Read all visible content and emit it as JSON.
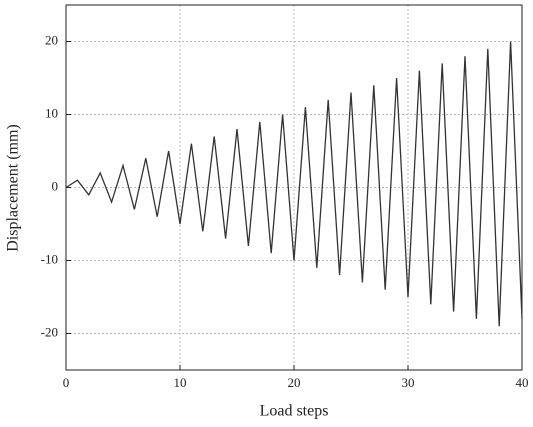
{
  "chart_data": {
    "type": "line",
    "xlabel": "Load steps",
    "ylabel": "Displacement (mm)",
    "x": [
      0,
      1,
      2,
      3,
      4,
      5,
      6,
      7,
      8,
      9,
      10,
      11,
      12,
      13,
      14,
      15,
      16,
      17,
      18,
      19,
      20,
      21,
      22,
      23,
      24,
      25,
      26,
      27,
      28,
      29,
      30,
      31,
      32,
      33,
      34,
      35,
      36,
      37,
      38,
      39,
      40
    ],
    "values": [
      0,
      1,
      -1,
      2,
      -2,
      3,
      -3,
      4,
      -4,
      5,
      -5,
      6,
      -6,
      7,
      -7,
      8,
      -8,
      9,
      -9,
      10,
      -10,
      11,
      -11,
      12,
      -12,
      13,
      -13,
      14,
      -14,
      15,
      -15,
      16,
      -16,
      17,
      -17,
      18,
      -18,
      19,
      -19,
      20,
      -18
    ],
    "color": "#333333",
    "xlim": [
      0,
      40
    ],
    "xticks": [
      0,
      10,
      20,
      30,
      40
    ],
    "ylim": [
      -25,
      25
    ],
    "yticks": [
      -20,
      -10,
      0,
      10,
      20
    ],
    "grid": true
  }
}
